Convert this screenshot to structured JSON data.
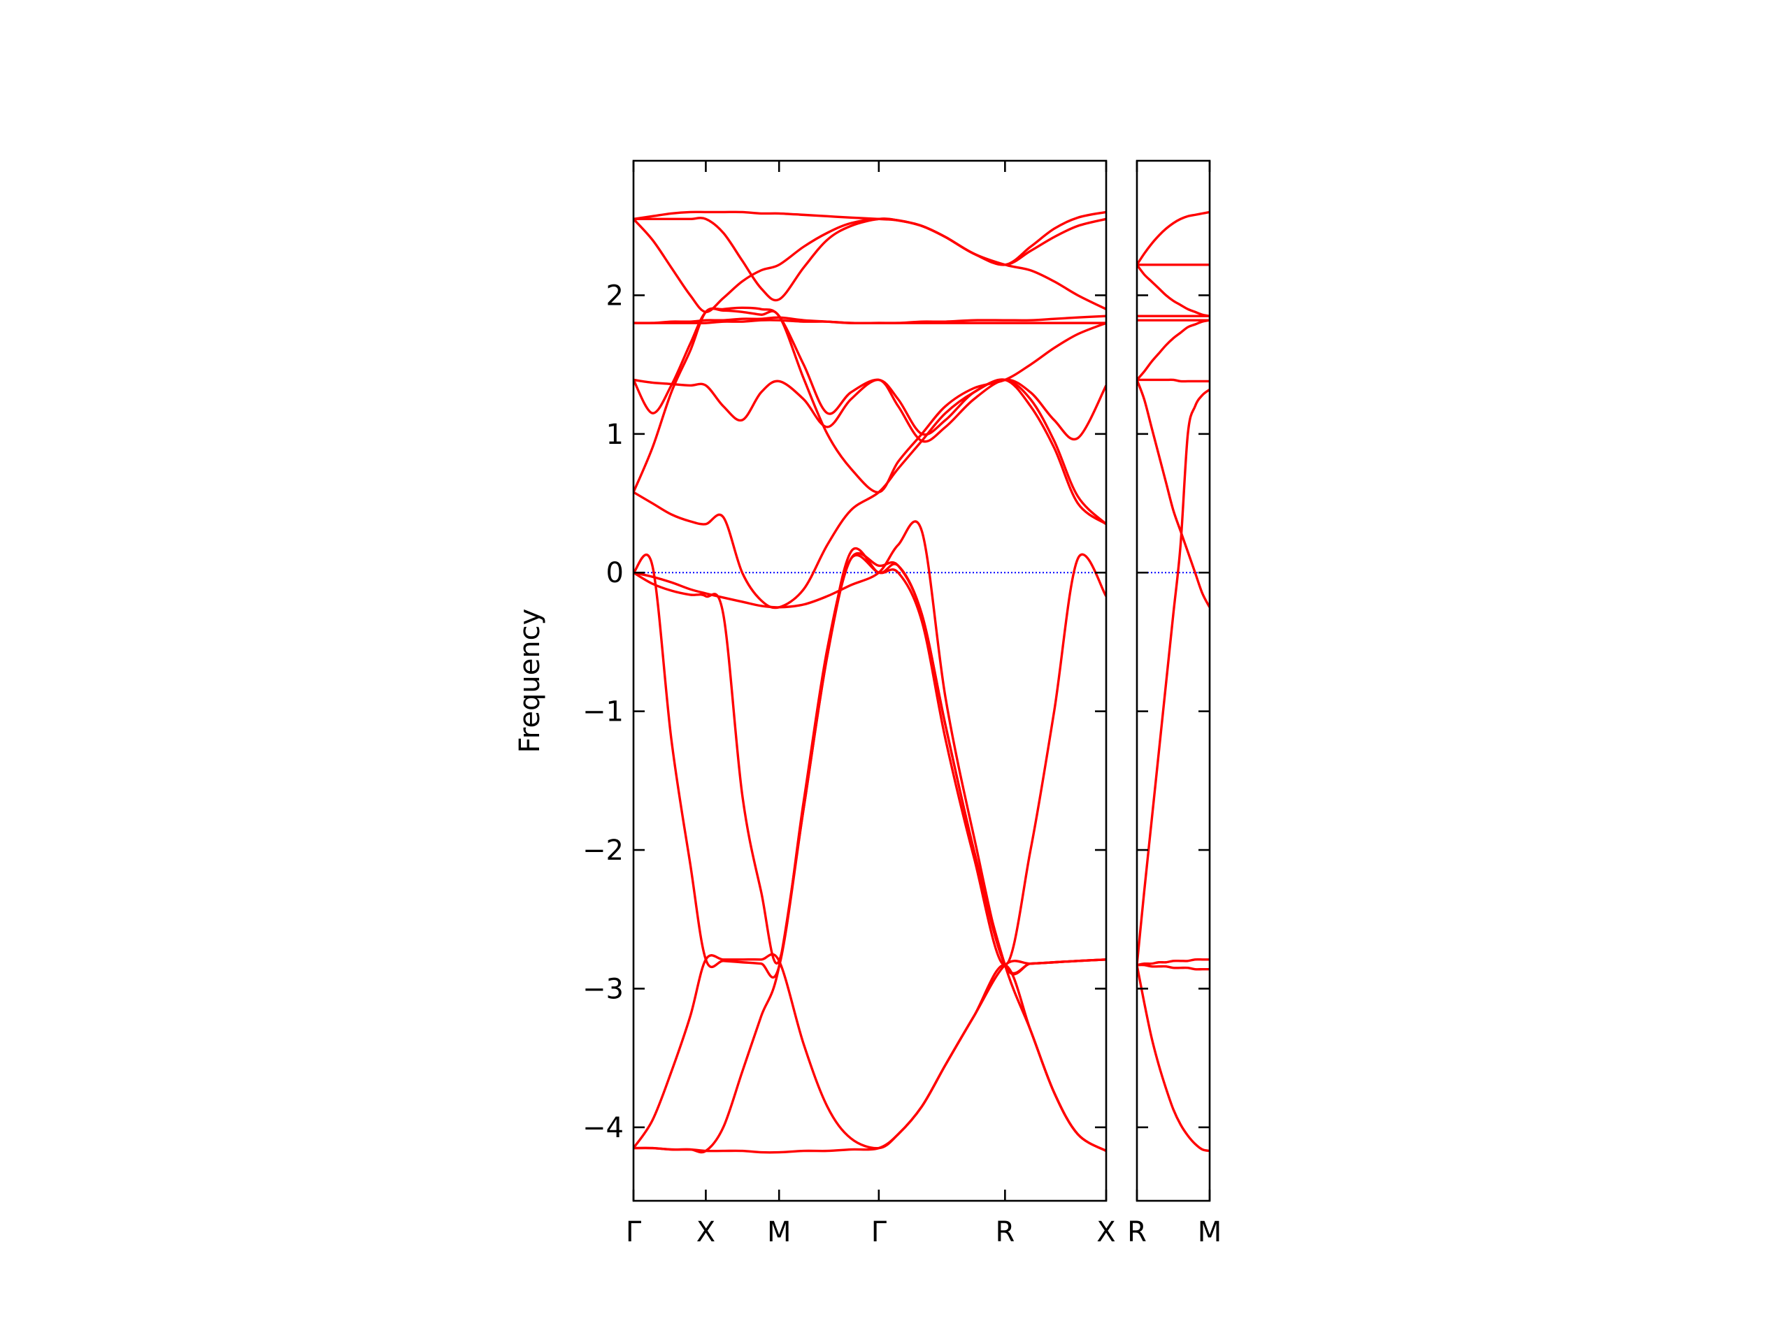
{
  "chart_data": [
    {
      "type": "line",
      "ylabel": "Frequency",
      "color": "#ff0000",
      "ylim": [
        -4.53,
        2.97
      ],
      "yticks": [
        {
          "value": -4,
          "label": "−4"
        },
        {
          "value": -3,
          "label": "−3"
        },
        {
          "value": -2,
          "label": "−2"
        },
        {
          "value": -1,
          "label": "−1"
        },
        0,
        1,
        2
      ],
      "show_ytick_labels": true,
      "xlim": [
        0,
        1
      ],
      "xticks": [
        {
          "value": 0,
          "label": "Γ"
        },
        {
          "value": 0.153,
          "label": "X"
        },
        {
          "value": 0.308,
          "label": "M"
        },
        {
          "value": 0.519,
          "label": "Γ"
        },
        {
          "value": 0.786,
          "label": "R"
        },
        {
          "value": 1,
          "label": "X"
        }
      ],
      "zero_line": {
        "value": 0,
        "color": "#0000ff"
      },
      "x": [
        0,
        0.04,
        0.08,
        0.12,
        0.153,
        0.19,
        0.23,
        0.27,
        0.308,
        0.36,
        0.41,
        0.46,
        0.519,
        0.56,
        0.61,
        0.66,
        0.72,
        0.786,
        0.84,
        0.89,
        0.94,
        1
      ],
      "series": [
        {
          "values": [
            -4.15,
            -4.15,
            -4.16,
            -4.16,
            -4.17,
            -4.17,
            -4.17,
            -4.18,
            -4.18,
            -4.17,
            -4.17,
            -4.16,
            -4.15,
            -4.05,
            -3.85,
            -3.55,
            -3.2,
            -2.83,
            -3.3,
            -3.75,
            -4.05,
            -4.17
          ]
        },
        {
          "values": [
            -4.15,
            -3.95,
            -3.6,
            -3.2,
            -2.79,
            -2.79,
            -2.79,
            -2.79,
            -2.8,
            -3.4,
            -3.85,
            -4.08,
            -4.15,
            -4.05,
            -3.85,
            -3.55,
            -3.2,
            -2.83,
            -2.82,
            -2.81,
            -2.8,
            -2.79
          ]
        },
        {
          "values": [
            -4.15,
            -4.15,
            -4.16,
            -4.16,
            -4.17,
            -4.0,
            -3.6,
            -3.2,
            -2.84,
            -1.7,
            -0.6,
            0.15,
            0.0,
            0.05,
            -0.3,
            -1.1,
            -2.0,
            -2.83,
            -2.82,
            -2.81,
            -2.8,
            -2.79
          ]
        },
        {
          "values": [
            0,
            0.05,
            -1.2,
            -2.1,
            -2.79,
            -2.8,
            -2.81,
            -2.82,
            -2.84,
            -1.7,
            -0.6,
            0.1,
            0.05,
            0.05,
            -0.3,
            -1.1,
            -2.0,
            -2.83,
            -3.3,
            -3.75,
            -4.05,
            -4.17
          ]
        },
        {
          "values": [
            0,
            -0.08,
            -0.13,
            -0.16,
            -0.17,
            -0.3,
            -1.6,
            -2.3,
            -2.8,
            -1.65,
            -0.55,
            0.1,
            0.0,
            0.0,
            -0.35,
            -1.2,
            -2.05,
            -2.83,
            -2.0,
            -1.0,
            0.1,
            -0.17
          ]
        },
        {
          "values": [
            0,
            -0.03,
            -0.07,
            -0.12,
            -0.15,
            -0.18,
            -0.21,
            -0.24,
            -0.25,
            -0.23,
            -0.17,
            -0.09,
            0.0,
            0.2,
            0.3,
            -0.9,
            -1.9,
            -2.83,
            -2.82,
            -2.81,
            -2.8,
            -2.79
          ]
        },
        {
          "values": [
            0.58,
            0.5,
            0.42,
            0.37,
            0.35,
            0.4,
            0.0,
            -0.2,
            -0.25,
            -0.12,
            0.2,
            0.45,
            0.58,
            0.75,
            0.95,
            1.15,
            1.3,
            1.39,
            1.2,
            0.9,
            0.5,
            0.35
          ]
        },
        {
          "values": [
            0.58,
            0.9,
            1.3,
            1.6,
            1.88,
            1.89,
            1.88,
            1.86,
            1.85,
            1.4,
            1.0,
            0.75,
            0.58,
            0.8,
            1.0,
            1.2,
            1.33,
            1.39,
            1.5,
            1.62,
            1.72,
            1.8
          ]
        },
        {
          "values": [
            1.39,
            1.37,
            1.36,
            1.35,
            1.35,
            1.2,
            1.1,
            1.3,
            1.38,
            1.25,
            1.05,
            1.25,
            1.39,
            1.2,
            0.95,
            1.05,
            1.25,
            1.39,
            1.3,
            1.1,
            0.97,
            1.35
          ]
        },
        {
          "values": [
            1.39,
            1.15,
            1.35,
            1.65,
            1.88,
            1.9,
            1.91,
            1.9,
            1.85,
            1.5,
            1.15,
            1.3,
            1.39,
            1.25,
            1.0,
            1.1,
            1.3,
            1.39,
            1.25,
            0.95,
            0.55,
            0.35
          ]
        },
        {
          "values": [
            1.8,
            1.8,
            1.8,
            1.8,
            1.8,
            1.81,
            1.81,
            1.82,
            1.82,
            1.81,
            1.81,
            1.8,
            1.8,
            1.8,
            1.81,
            1.81,
            1.82,
            1.82,
            1.82,
            1.83,
            1.84,
            1.85
          ]
        },
        {
          "values": [
            1.8,
            1.8,
            1.81,
            1.81,
            1.82,
            1.82,
            1.83,
            1.83,
            1.84,
            1.82,
            1.81,
            1.8,
            1.8,
            1.8,
            1.8,
            1.8,
            1.8,
            1.8,
            1.8,
            1.8,
            1.8,
            1.8
          ]
        },
        {
          "values": [
            2.55,
            2.4,
            2.2,
            2.0,
            1.88,
            1.98,
            2.1,
            2.18,
            2.22,
            2.35,
            2.45,
            2.52,
            2.55,
            2.54,
            2.5,
            2.42,
            2.3,
            2.22,
            2.18,
            2.1,
            2.0,
            1.9
          ]
        },
        {
          "values": [
            2.55,
            2.55,
            2.55,
            2.55,
            2.55,
            2.45,
            2.25,
            2.05,
            1.97,
            2.2,
            2.4,
            2.5,
            2.55,
            2.54,
            2.5,
            2.42,
            2.3,
            2.22,
            2.32,
            2.42,
            2.5,
            2.55
          ]
        },
        {
          "values": [
            2.55,
            2.57,
            2.59,
            2.6,
            2.6,
            2.6,
            2.6,
            2.59,
            2.59,
            2.58,
            2.57,
            2.56,
            2.55,
            2.54,
            2.5,
            2.42,
            2.3,
            2.22,
            2.35,
            2.48,
            2.56,
            2.6
          ]
        }
      ]
    },
    {
      "type": "line",
      "color": "#ff0000",
      "ylim": [
        -4.53,
        2.97
      ],
      "yticks": [
        -4,
        -3,
        -2,
        -1,
        0,
        1,
        2
      ],
      "show_ytick_labels": false,
      "xlim": [
        0,
        1
      ],
      "xticks": [
        {
          "value": 0,
          "label": "R"
        },
        {
          "value": 1,
          "label": "M"
        }
      ],
      "zero_line": {
        "value": 0,
        "color": "#0000ff"
      },
      "x": [
        0,
        0.1,
        0.2,
        0.3,
        0.4,
        0.5,
        0.6,
        0.7,
        0.8,
        0.9,
        1
      ],
      "series": [
        {
          "values": [
            -2.83,
            -3.1,
            -3.35,
            -3.55,
            -3.72,
            -3.87,
            -3.98,
            -4.06,
            -4.12,
            -4.16,
            -4.17
          ]
        },
        {
          "values": [
            -2.83,
            -2.83,
            -2.84,
            -2.84,
            -2.84,
            -2.85,
            -2.85,
            -2.85,
            -2.86,
            -2.86,
            -2.86
          ]
        },
        {
          "values": [
            -2.83,
            -2.82,
            -2.82,
            -2.81,
            -2.81,
            -2.8,
            -2.8,
            -2.8,
            -2.79,
            -2.79,
            -2.79
          ]
        },
        {
          "values": [
            -2.83,
            -2.3,
            -1.8,
            -1.3,
            -0.8,
            -0.3,
            0.2,
            1.0,
            1.2,
            1.28,
            1.32
          ]
        },
        {
          "values": [
            1.39,
            1.25,
            1.05,
            0.85,
            0.65,
            0.45,
            0.3,
            0.15,
            0.0,
            -0.15,
            -0.25
          ]
        },
        {
          "values": [
            1.39,
            1.39,
            1.39,
            1.39,
            1.39,
            1.39,
            1.38,
            1.38,
            1.38,
            1.38,
            1.38
          ]
        },
        {
          "values": [
            1.39,
            1.45,
            1.52,
            1.58,
            1.64,
            1.69,
            1.73,
            1.77,
            1.79,
            1.81,
            1.82
          ]
        },
        {
          "values": [
            1.82,
            1.82,
            1.82,
            1.82,
            1.82,
            1.82,
            1.82,
            1.82,
            1.82,
            1.82,
            1.82
          ]
        },
        {
          "values": [
            1.85,
            1.85,
            1.85,
            1.85,
            1.85,
            1.85,
            1.85,
            1.85,
            1.85,
            1.85,
            1.85
          ]
        },
        {
          "values": [
            2.22,
            2.3,
            2.37,
            2.43,
            2.48,
            2.52,
            2.55,
            2.57,
            2.58,
            2.59,
            2.6
          ]
        },
        {
          "values": [
            2.22,
            2.22,
            2.22,
            2.22,
            2.22,
            2.22,
            2.22,
            2.22,
            2.22,
            2.22,
            2.22
          ]
        },
        {
          "values": [
            2.22,
            2.15,
            2.1,
            2.05,
            2.0,
            1.96,
            1.93,
            1.9,
            1.88,
            1.86,
            1.85
          ]
        }
      ]
    }
  ]
}
